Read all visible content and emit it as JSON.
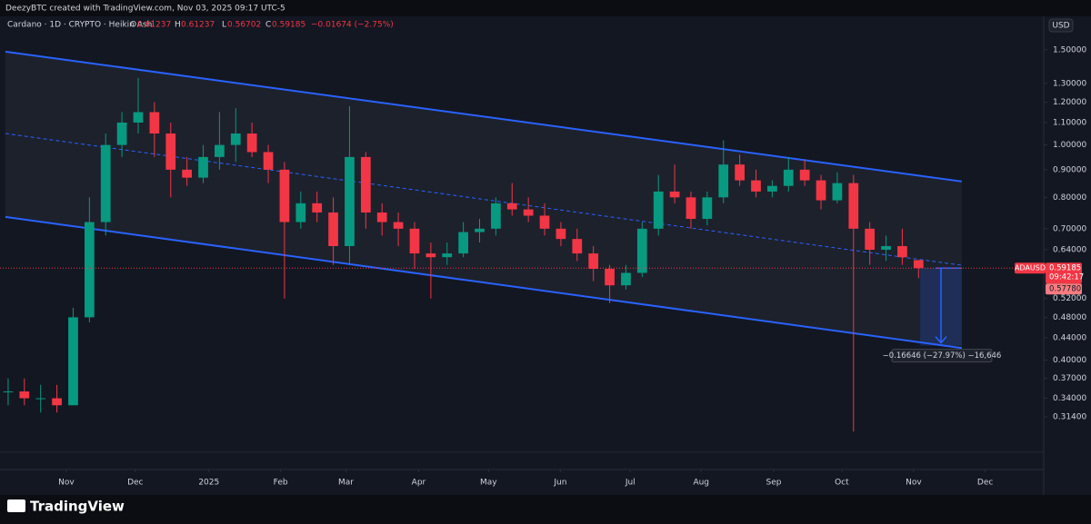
{
  "header": {
    "credit": "DeezyBTC created with TradingView.com, Nov 03, 2025 09:17 UTC-5"
  },
  "footer": {
    "brand": "TradingView"
  },
  "chart_data": {
    "type": "candlestick",
    "title": "Cardano · 1D · CRYPTO · Heikin Ashi",
    "legend_labels": {
      "open": "O",
      "high": "H",
      "low": "L",
      "close": "C"
    },
    "change_label": "−0.01674 (−2.75%)",
    "symbol": "ADAUSD",
    "currency": "USD",
    "countdown": "09:42:17",
    "secondary_price": {
      "value": 0.5778,
      "label": "0.57780"
    },
    "up_color": "#089981",
    "down_color": "#f23645",
    "log_scale": true,
    "categories": [
      null,
      null,
      null,
      null,
      null,
      null,
      null,
      null,
      null,
      null,
      null,
      null,
      null,
      null,
      null,
      null,
      null,
      null,
      null,
      null,
      null,
      null,
      null,
      null,
      null,
      null,
      null,
      null,
      null,
      null,
      null,
      null,
      null,
      null,
      null,
      null,
      null,
      null,
      null,
      null,
      null,
      null,
      null,
      null,
      null,
      null,
      null,
      null,
      null,
      null,
      null,
      null,
      null,
      null,
      null,
      null,
      null
    ],
    "open": [
      0.35,
      0.35,
      0.34,
      0.34,
      0.33,
      0.48,
      0.72,
      1.0,
      1.1,
      1.15,
      1.05,
      0.9,
      0.87,
      0.95,
      1.0,
      1.05,
      0.97,
      0.9,
      0.72,
      0.78,
      0.75,
      0.65,
      0.95,
      0.75,
      0.72,
      0.7,
      0.63,
      0.62,
      0.63,
      0.69,
      0.7,
      0.78,
      0.76,
      0.74,
      0.7,
      0.67,
      0.63,
      0.59,
      0.55,
      0.58,
      0.7,
      0.82,
      0.8,
      0.73,
      0.8,
      0.92,
      0.86,
      0.82,
      0.84,
      0.9,
      0.86,
      0.79,
      0.85,
      0.7,
      0.64,
      0.65,
      0.61237
    ],
    "high": [
      0.37,
      0.37,
      0.36,
      0.36,
      0.5,
      0.8,
      1.05,
      1.15,
      1.33,
      1.2,
      1.1,
      0.95,
      1.0,
      1.15,
      1.17,
      1.1,
      1.0,
      0.93,
      0.82,
      0.82,
      0.8,
      1.18,
      0.97,
      0.78,
      0.75,
      0.72,
      0.66,
      0.66,
      0.72,
      0.73,
      0.8,
      0.85,
      0.8,
      0.78,
      0.72,
      0.7,
      0.65,
      0.6,
      0.6,
      0.72,
      0.88,
      0.92,
      0.82,
      0.82,
      1.02,
      0.96,
      0.9,
      0.86,
      0.95,
      0.94,
      0.88,
      0.89,
      0.88,
      0.72,
      0.68,
      0.7,
      0.61237
    ],
    "low": [
      0.33,
      0.33,
      0.32,
      0.32,
      0.33,
      0.47,
      0.68,
      0.95,
      1.05,
      0.95,
      0.8,
      0.84,
      0.85,
      0.9,
      0.93,
      0.95,
      0.85,
      0.52,
      0.7,
      0.72,
      0.6,
      0.6,
      0.7,
      0.68,
      0.65,
      0.59,
      0.52,
      0.6,
      0.62,
      0.66,
      0.68,
      0.74,
      0.72,
      0.68,
      0.65,
      0.61,
      0.56,
      0.51,
      0.54,
      0.57,
      0.68,
      0.78,
      0.7,
      0.71,
      0.78,
      0.84,
      0.8,
      0.8,
      0.82,
      0.84,
      0.76,
      0.78,
      0.295,
      0.6,
      0.61,
      0.6,
      0.56702
    ],
    "close": [
      0.35,
      0.34,
      0.34,
      0.33,
      0.48,
      0.72,
      1.0,
      1.1,
      1.15,
      1.05,
      0.9,
      0.87,
      0.95,
      1.0,
      1.05,
      0.97,
      0.9,
      0.72,
      0.78,
      0.75,
      0.65,
      0.95,
      0.75,
      0.72,
      0.7,
      0.63,
      0.62,
      0.63,
      0.69,
      0.7,
      0.78,
      0.76,
      0.74,
      0.7,
      0.67,
      0.63,
      0.59,
      0.55,
      0.58,
      0.7,
      0.82,
      0.8,
      0.73,
      0.8,
      0.92,
      0.86,
      0.82,
      0.84,
      0.9,
      0.86,
      0.79,
      0.85,
      0.7,
      0.64,
      0.65,
      0.62,
      0.59185
    ],
    "xlim": [
      -0.5,
      63.7
    ],
    "xticks": [
      {
        "value": 3.58,
        "label": "Nov"
      },
      {
        "value": 7.82,
        "label": "Dec"
      },
      {
        "value": 12.35,
        "label": "2025"
      },
      {
        "value": 16.76,
        "label": "Feb"
      },
      {
        "value": 20.78,
        "label": "Mar"
      },
      {
        "value": 25.25,
        "label": "Apr"
      },
      {
        "value": 29.55,
        "label": "May"
      },
      {
        "value": 33.97,
        "label": "Jun"
      },
      {
        "value": 38.27,
        "label": "Jul"
      },
      {
        "value": 42.63,
        "label": "Aug"
      },
      {
        "value": 47.09,
        "label": "Sep"
      },
      {
        "value": 51.28,
        "label": "Oct"
      },
      {
        "value": 55.7,
        "label": "Nov"
      },
      {
        "value": 60.1,
        "label": "Dec"
      }
    ],
    "ylim": [
      0.251,
      1.716
    ],
    "yticks": [
      {
        "value": 1.5,
        "label": "1.50000"
      },
      {
        "value": 1.3,
        "label": "1.30000"
      },
      {
        "value": 1.2,
        "label": "1.20000"
      },
      {
        "value": 1.1,
        "label": "1.10000"
      },
      {
        "value": 1.0,
        "label": "1.00000"
      },
      {
        "value": 0.9,
        "label": "0.90000"
      },
      {
        "value": 0.8,
        "label": "0.80000"
      },
      {
        "value": 0.7,
        "label": "0.70000"
      },
      {
        "value": 0.64,
        "label": "0.64000"
      },
      {
        "value": 0.52,
        "label": "0.52000"
      },
      {
        "value": 0.48,
        "label": "0.48000"
      },
      {
        "value": 0.44,
        "label": "0.44000"
      },
      {
        "value": 0.4,
        "label": "0.40000"
      },
      {
        "value": 0.37,
        "label": "0.37000"
      },
      {
        "value": 0.34,
        "label": "0.34000"
      },
      {
        "value": 0.314,
        "label": "0.31400"
      }
    ],
    "channel": {
      "color": "#2962ff",
      "upper": {
        "x": [
          -0.17,
          58.66
        ],
        "y": [
          1.488,
          0.856
        ]
      },
      "middle": {
        "x": [
          -0.17,
          58.66
        ],
        "y": [
          1.05,
          0.599
        ]
      },
      "lower": {
        "x": [
          -0.17,
          58.66
        ],
        "y": [
          0.736,
          0.421
        ]
      }
    },
    "measure": {
      "x": [
        56.1,
        58.66
      ],
      "y": [
        0.59185,
        0.42539
      ],
      "label": "−0.16646 (−27.97%) −16,646"
    }
  }
}
